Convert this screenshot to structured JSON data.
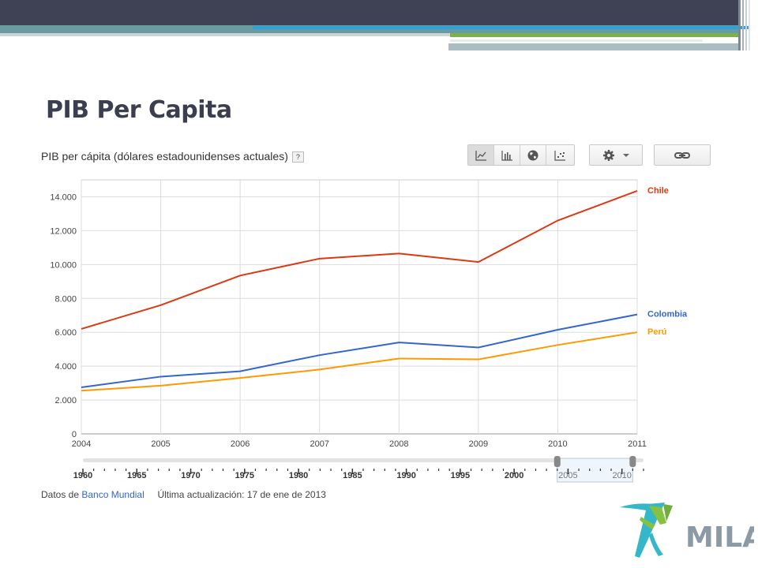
{
  "slide": {
    "title": "PIB Per Capita"
  },
  "chart_title": "PIB per cápita (dólares estadounidenses actuales)",
  "help_label": "?",
  "toolbar": {
    "icons": [
      "line-chart-icon",
      "bar-chart-icon",
      "globe-map-icon",
      "scatter-icon"
    ],
    "settings_icon": "gear-icon",
    "share_icon": "link-icon"
  },
  "colors": {
    "chile": "#dc3912",
    "colombia": "#3366cc",
    "peru": "#ff9900",
    "title": "#3b3e4f",
    "topbar": "#3f4154"
  },
  "chart_data": {
    "type": "line",
    "x": [
      2004,
      2005,
      2006,
      2007,
      2008,
      2009,
      2010,
      2011
    ],
    "x_tick_labels": [
      "2004",
      "2005",
      "2006",
      "2007",
      "2008",
      "2009",
      "2010",
      "2011"
    ],
    "ylim": [
      0,
      15000
    ],
    "y_ticks": [
      0,
      2000,
      4000,
      6000,
      8000,
      10000,
      12000,
      14000
    ],
    "y_tick_labels": [
      "0",
      "2.000",
      "4.000",
      "6.000",
      "8.000",
      "10.000",
      "12.000",
      "14.000"
    ],
    "grid": true,
    "legend": "right, labels at line ends",
    "series": [
      {
        "name": "Chile",
        "color": "#dc3912",
        "values": [
          6200,
          7600,
          9350,
          10350,
          10650,
          10150,
          12600,
          14350
        ]
      },
      {
        "name": "Colombia",
        "color": "#3366cc",
        "values": [
          2750,
          3380,
          3700,
          4650,
          5400,
          5100,
          6150,
          7050
        ]
      },
      {
        "name": "Perú",
        "color": "#ff9900",
        "values": [
          2550,
          2850,
          3300,
          3800,
          4450,
          4400,
          5250,
          6000
        ]
      }
    ]
  },
  "timeline": {
    "labels": [
      "1960",
      "1965",
      "1970",
      "1975",
      "1980",
      "1985",
      "1990",
      "1995",
      "2000",
      "2005",
      "2010"
    ],
    "range": [
      1960,
      2012
    ],
    "selected": [
      2004,
      2011
    ]
  },
  "footer": {
    "prefix": "Datos de",
    "source_link": "Banco Mundial",
    "updated": "Última actualización: 17 de ene de 2013"
  },
  "logo": {
    "text": "MILA"
  }
}
